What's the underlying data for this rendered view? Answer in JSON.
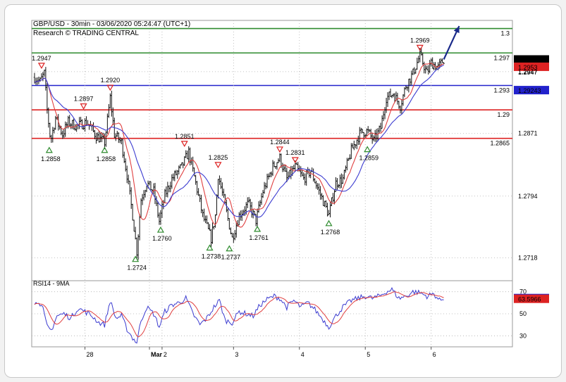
{
  "header": {
    "title": "GBP/USD - 30min - 03/06/2020 05:24:47 (UTC+1)",
    "subtitle": "Research © TRADING CENTRAL"
  },
  "chart_data": [
    {
      "type": "candlestick",
      "symbol": "GBP/USD",
      "timeframe": "30min",
      "ylim": [
        1.269,
        1.301
      ],
      "y_ticks": [
        "1.2947",
        "1.2871",
        "1.2794",
        "1.2718"
      ],
      "x_ticks": [
        "28",
        "Mar",
        "2",
        "3",
        "4",
        "5",
        "6"
      ],
      "price_path": [
        [
          0,
          1.294
        ],
        [
          8,
          1.2935
        ],
        [
          14,
          1.2945
        ],
        [
          18,
          1.29
        ],
        [
          23,
          1.2862
        ],
        [
          30,
          1.289
        ],
        [
          40,
          1.287
        ],
        [
          48,
          1.2885
        ],
        [
          60,
          1.288
        ],
        [
          75,
          1.2885
        ],
        [
          88,
          1.2868
        ],
        [
          100,
          1.286
        ],
        [
          108,
          1.2915
        ],
        [
          114,
          1.287
        ],
        [
          124,
          1.286
        ],
        [
          132,
          1.282
        ],
        [
          140,
          1.277
        ],
        [
          146,
          1.2726
        ],
        [
          152,
          1.279
        ],
        [
          160,
          1.281
        ],
        [
          170,
          1.28
        ],
        [
          178,
          1.2763
        ],
        [
          186,
          1.2795
        ],
        [
          196,
          1.2815
        ],
        [
          210,
          1.283
        ],
        [
          220,
          1.2848
        ],
        [
          230,
          1.281
        ],
        [
          240,
          1.277
        ],
        [
          252,
          1.2742
        ],
        [
          258,
          1.277
        ],
        [
          262,
          1.282
        ],
        [
          270,
          1.279
        ],
        [
          282,
          1.2742
        ],
        [
          292,
          1.277
        ],
        [
          305,
          1.2785
        ],
        [
          316,
          1.2764
        ],
        [
          326,
          1.28
        ],
        [
          340,
          1.283
        ],
        [
          350,
          1.2841
        ],
        [
          360,
          1.2815
        ],
        [
          372,
          1.283
        ],
        [
          384,
          1.2815
        ],
        [
          394,
          1.2825
        ],
        [
          406,
          1.28
        ],
        [
          420,
          1.2771
        ],
        [
          430,
          1.281
        ],
        [
          440,
          1.2815
        ],
        [
          452,
          1.285
        ],
        [
          465,
          1.2872
        ],
        [
          475,
          1.2874
        ],
        [
          484,
          1.2862
        ],
        [
          494,
          1.2878
        ],
        [
          502,
          1.2915
        ],
        [
          512,
          1.292
        ],
        [
          522,
          1.2905
        ],
        [
          530,
          1.293
        ],
        [
          540,
          1.2945
        ],
        [
          550,
          1.2967
        ],
        [
          560,
          1.2945
        ],
        [
          566,
          1.2958
        ],
        [
          576,
          1.2952
        ],
        [
          584,
          1.2962
        ]
      ],
      "series": [
        {
          "name": "",
          "color": "#e04040"
        },
        {
          "name": "",
          "color": "#3b3bd0"
        }
      ],
      "horizontal_levels": [
        {
          "value": 1.3,
          "label": "1.3",
          "color": "#2e8b2e"
        },
        {
          "value": 1.297,
          "label": "1.297",
          "color": "#2e8b2e"
        },
        {
          "value": 1.293,
          "label": "1.293",
          "color": "#2222cc"
        },
        {
          "value": 1.29,
          "label": "1.29",
          "color": "#dd2222"
        },
        {
          "value": 1.2865,
          "label": "1.2865",
          "color": "#dd2222"
        }
      ],
      "price_tags": [
        {
          "value": 1.2962,
          "label": "1.2962",
          "bg": "#000000",
          "fg": "#ffffff"
        },
        {
          "value": 1.2953,
          "label": "1.2953",
          "bg": "#dd2222",
          "fg": "#ffffff"
        },
        {
          "value": 1.2947,
          "label": "1.2947",
          "bg": "",
          "fg": "#000000"
        },
        {
          "value": 1.29243,
          "label": "1.29243",
          "bg": "#2222cc",
          "fg": "#ffffff"
        }
      ],
      "highs": [
        {
          "t": 10,
          "v": 1.2947,
          "label": "1.2947"
        },
        {
          "t": 70,
          "v": 1.2897,
          "label": "1.2897"
        },
        {
          "t": 108,
          "v": 1.292,
          "label": "1.2920"
        },
        {
          "t": 214,
          "v": 1.2851,
          "label": "1.2851"
        },
        {
          "t": 262,
          "v": 1.2825,
          "label": "1.2825"
        },
        {
          "t": 350,
          "v": 1.2844,
          "label": "1.2844"
        },
        {
          "t": 372,
          "v": 1.2831,
          "label": "1.2831"
        },
        {
          "t": 550,
          "v": 1.2969,
          "label": "1.2969"
        }
      ],
      "lows": [
        {
          "t": 21,
          "v": 1.2858,
          "label": "1.2858"
        },
        {
          "t": 100,
          "v": 1.2858,
          "label": "1.2858"
        },
        {
          "t": 144,
          "v": 1.2724,
          "label": "1.2724"
        },
        {
          "t": 180,
          "v": 1.276,
          "label": "1.2760"
        },
        {
          "t": 250,
          "v": 1.2738,
          "label": "1.2738"
        },
        {
          "t": 278,
          "v": 1.2737,
          "label": "1.2737"
        },
        {
          "t": 318,
          "v": 1.2761,
          "label": "1.2761"
        },
        {
          "t": 420,
          "v": 1.2768,
          "label": "1.2768"
        },
        {
          "t": 475,
          "v": 1.2859,
          "label": "1.2859"
        }
      ],
      "projection": {
        "from": [
          584,
          1.2962
        ],
        "to": [
          606,
          1.3003
        ]
      }
    },
    {
      "type": "line",
      "title": "RSI14 - 9MA",
      "ylim": [
        20,
        80
      ],
      "y_ticks": [
        70,
        50,
        30
      ],
      "rsi_path": [
        [
          0,
          58
        ],
        [
          6,
          62
        ],
        [
          12,
          54
        ],
        [
          18,
          38
        ],
        [
          24,
          35
        ],
        [
          32,
          48
        ],
        [
          42,
          50
        ],
        [
          52,
          46
        ],
        [
          62,
          55
        ],
        [
          72,
          52
        ],
        [
          82,
          48
        ],
        [
          92,
          42
        ],
        [
          100,
          40
        ],
        [
          108,
          62
        ],
        [
          116,
          46
        ],
        [
          124,
          48
        ],
        [
          132,
          36
        ],
        [
          140,
          28
        ],
        [
          146,
          24
        ],
        [
          152,
          44
        ],
        [
          160,
          56
        ],
        [
          170,
          50
        ],
        [
          178,
          38
        ],
        [
          186,
          52
        ],
        [
          196,
          58
        ],
        [
          206,
          60
        ],
        [
          216,
          64
        ],
        [
          226,
          50
        ],
        [
          236,
          40
        ],
        [
          246,
          46
        ],
        [
          256,
          56
        ],
        [
          264,
          62
        ],
        [
          272,
          44
        ],
        [
          282,
          42
        ],
        [
          292,
          52
        ],
        [
          302,
          50
        ],
        [
          312,
          48
        ],
        [
          322,
          58
        ],
        [
          332,
          63
        ],
        [
          342,
          66
        ],
        [
          350,
          64
        ],
        [
          360,
          56
        ],
        [
          370,
          62
        ],
        [
          380,
          56
        ],
        [
          390,
          60
        ],
        [
          400,
          54
        ],
        [
          410,
          46
        ],
        [
          420,
          38
        ],
        [
          430,
          48
        ],
        [
          440,
          56
        ],
        [
          452,
          62
        ],
        [
          462,
          64
        ],
        [
          472,
          66
        ],
        [
          482,
          64
        ],
        [
          492,
          66
        ],
        [
          502,
          70
        ],
        [
          510,
          72
        ],
        [
          520,
          64
        ],
        [
          530,
          66
        ],
        [
          540,
          70
        ],
        [
          550,
          69
        ],
        [
          560,
          66
        ],
        [
          570,
          68
        ],
        [
          578,
          62
        ],
        [
          584,
          64
        ]
      ],
      "ma_path": [
        [
          0,
          55
        ],
        [
          20,
          50
        ],
        [
          40,
          46
        ],
        [
          60,
          50
        ],
        [
          80,
          50
        ],
        [
          100,
          46
        ],
        [
          120,
          48
        ],
        [
          140,
          36
        ],
        [
          150,
          34
        ],
        [
          170,
          46
        ],
        [
          190,
          50
        ],
        [
          210,
          56
        ],
        [
          230,
          56
        ],
        [
          250,
          50
        ],
        [
          270,
          52
        ],
        [
          290,
          48
        ],
        [
          310,
          50
        ],
        [
          330,
          56
        ],
        [
          350,
          60
        ],
        [
          370,
          60
        ],
        [
          390,
          58
        ],
        [
          410,
          52
        ],
        [
          430,
          46
        ],
        [
          450,
          54
        ],
        [
          470,
          60
        ],
        [
          490,
          64
        ],
        [
          510,
          67
        ],
        [
          530,
          67
        ],
        [
          550,
          68
        ],
        [
          570,
          66
        ],
        [
          584,
          64
        ]
      ],
      "price_tags": [
        {
          "value": 64.2324,
          "label": "64.2324",
          "bg": "#2222cc",
          "fg": "#ffffff"
        },
        {
          "value": 63.5966,
          "label": "63.5966",
          "bg": "#dd2222",
          "fg": "#ffffff"
        }
      ]
    }
  ]
}
